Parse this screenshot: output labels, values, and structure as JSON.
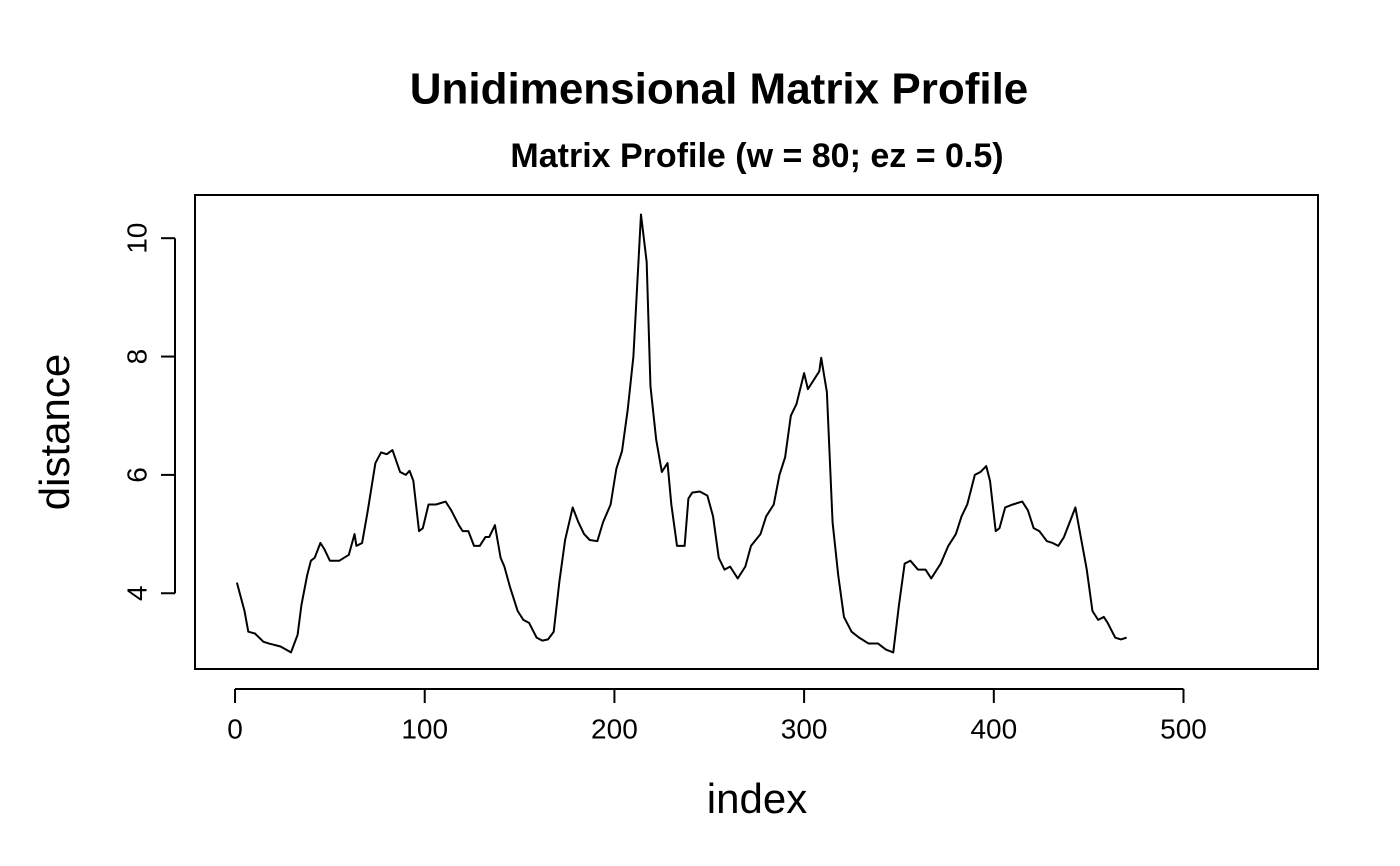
{
  "chart_data": {
    "type": "line",
    "title": "Unidimensional Matrix Profile",
    "subtitle": "Matrix Profile (w = 80; ez = 0.5)",
    "xlabel": "index",
    "ylabel": "distance",
    "color": "#000000",
    "xlim": [
      -21.1,
      570.9
    ],
    "ylim": [
      2.72,
      10.73
    ],
    "xticks": [
      0,
      100,
      200,
      300,
      400,
      500
    ],
    "yticks": [
      4,
      6,
      8,
      10
    ],
    "x": [
      1,
      5,
      7,
      10.5,
      15,
      18,
      24,
      29.5,
      33,
      35,
      38,
      40,
      42,
      45,
      47,
      50,
      55,
      60,
      63,
      64,
      67,
      70,
      74,
      77,
      80,
      83,
      87,
      90,
      92,
      94,
      97,
      99,
      102,
      106,
      111,
      114,
      118,
      120,
      123,
      126,
      129,
      132,
      134,
      137,
      140,
      142,
      145,
      149,
      152,
      155,
      159,
      162,
      165,
      168,
      171,
      174,
      178,
      181,
      184,
      187,
      191,
      194,
      198,
      201,
      204,
      207,
      210,
      214,
      217,
      219,
      222,
      225,
      228,
      230,
      233,
      237,
      239,
      241,
      245,
      249,
      252,
      255,
      258,
      261,
      265,
      269,
      272,
      277,
      280,
      284,
      287,
      290,
      293,
      296,
      300,
      302,
      305,
      308,
      309,
      312,
      315,
      318,
      321,
      325,
      329,
      334,
      339,
      343,
      347,
      350,
      353,
      356,
      360,
      364,
      367,
      372,
      376,
      380,
      383,
      386,
      390,
      393,
      396,
      398,
      401,
      403,
      406,
      410,
      415,
      418,
      421,
      424,
      428,
      431,
      434,
      437,
      440,
      443,
      445,
      449,
      452,
      455,
      458,
      460,
      464,
      467,
      470
    ],
    "values": [
      4.18,
      3.7,
      3.35,
      3.32,
      3.18,
      3.15,
      3.1,
      3.0,
      3.3,
      3.8,
      4.3,
      4.55,
      4.6,
      4.85,
      4.75,
      4.55,
      4.55,
      4.65,
      5.0,
      4.8,
      4.85,
      5.4,
      6.2,
      6.38,
      6.35,
      6.42,
      6.05,
      6.0,
      6.07,
      5.9,
      5.05,
      5.1,
      5.5,
      5.5,
      5.55,
      5.4,
      5.15,
      5.05,
      5.05,
      4.8,
      4.8,
      4.95,
      4.95,
      5.15,
      4.6,
      4.45,
      4.1,
      3.7,
      3.55,
      3.5,
      3.25,
      3.2,
      3.22,
      3.35,
      4.2,
      4.9,
      5.45,
      5.2,
      5.0,
      4.9,
      4.88,
      5.2,
      5.5,
      6.1,
      6.4,
      7.1,
      8.0,
      10.4,
      9.6,
      7.5,
      6.6,
      6.05,
      6.2,
      5.5,
      4.8,
      4.8,
      5.6,
      5.7,
      5.72,
      5.65,
      5.3,
      4.6,
      4.4,
      4.45,
      4.25,
      4.45,
      4.8,
      5.0,
      5.3,
      5.5,
      6.0,
      6.3,
      7.0,
      7.2,
      7.72,
      7.45,
      7.6,
      7.75,
      7.98,
      7.4,
      5.2,
      4.3,
      3.6,
      3.35,
      3.25,
      3.15,
      3.15,
      3.05,
      3.0,
      3.8,
      4.5,
      4.55,
      4.4,
      4.4,
      4.25,
      4.5,
      4.8,
      5.0,
      5.3,
      5.5,
      6.0,
      6.05,
      6.15,
      5.9,
      5.05,
      5.1,
      5.45,
      5.5,
      5.55,
      5.4,
      5.1,
      5.05,
      4.88,
      4.85,
      4.8,
      4.95,
      5.2,
      5.45,
      5.1,
      4.4,
      3.7,
      3.55,
      3.6,
      3.5,
      3.25,
      3.22,
      3.25
    ]
  }
}
